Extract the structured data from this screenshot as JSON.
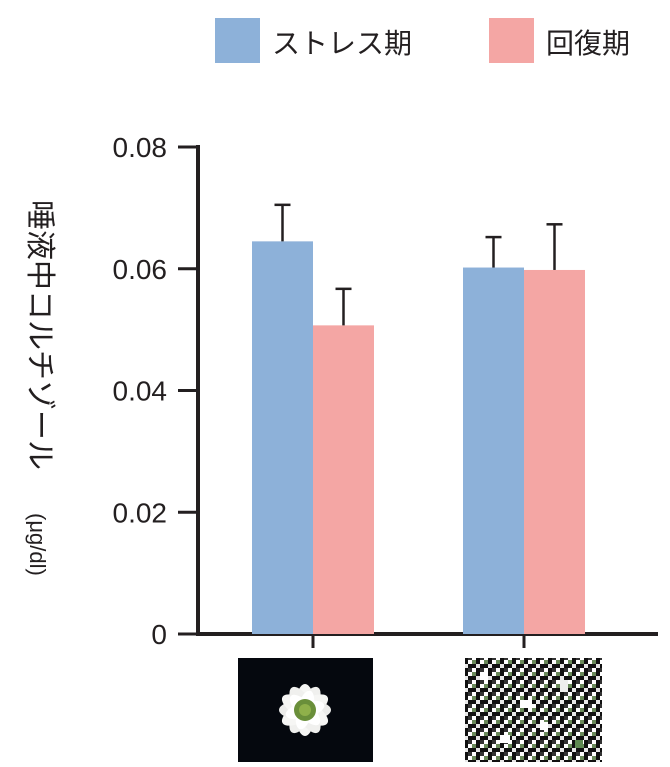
{
  "chart_data": {
    "type": "bar",
    "categories": [
      "",
      ""
    ],
    "category_icons": [
      "white-daisy-flower-photo",
      "pixel-mosaic-noise-photo"
    ],
    "series": [
      {
        "name": "ストレス期",
        "values": [
          0.0645,
          0.0602
        ],
        "errors": [
          0.006,
          0.005
        ],
        "color": "#8db1d9"
      },
      {
        "name": "回復期",
        "values": [
          0.0507,
          0.0598
        ],
        "errors": [
          0.006,
          0.0075
        ],
        "color": "#f4a6a4"
      }
    ],
    "ylabel": "唾液中コルチゾール",
    "yunit": "(μg/dl)",
    "ylim": [
      0,
      0.08
    ],
    "yticks": [
      "0",
      "0.02",
      "0.04",
      "0.06",
      "0.08"
    ],
    "ytick_values": [
      0,
      0.02,
      0.04,
      0.06,
      0.08
    ],
    "grid": false,
    "legend_position": "top",
    "axis_color": "#231f20"
  }
}
